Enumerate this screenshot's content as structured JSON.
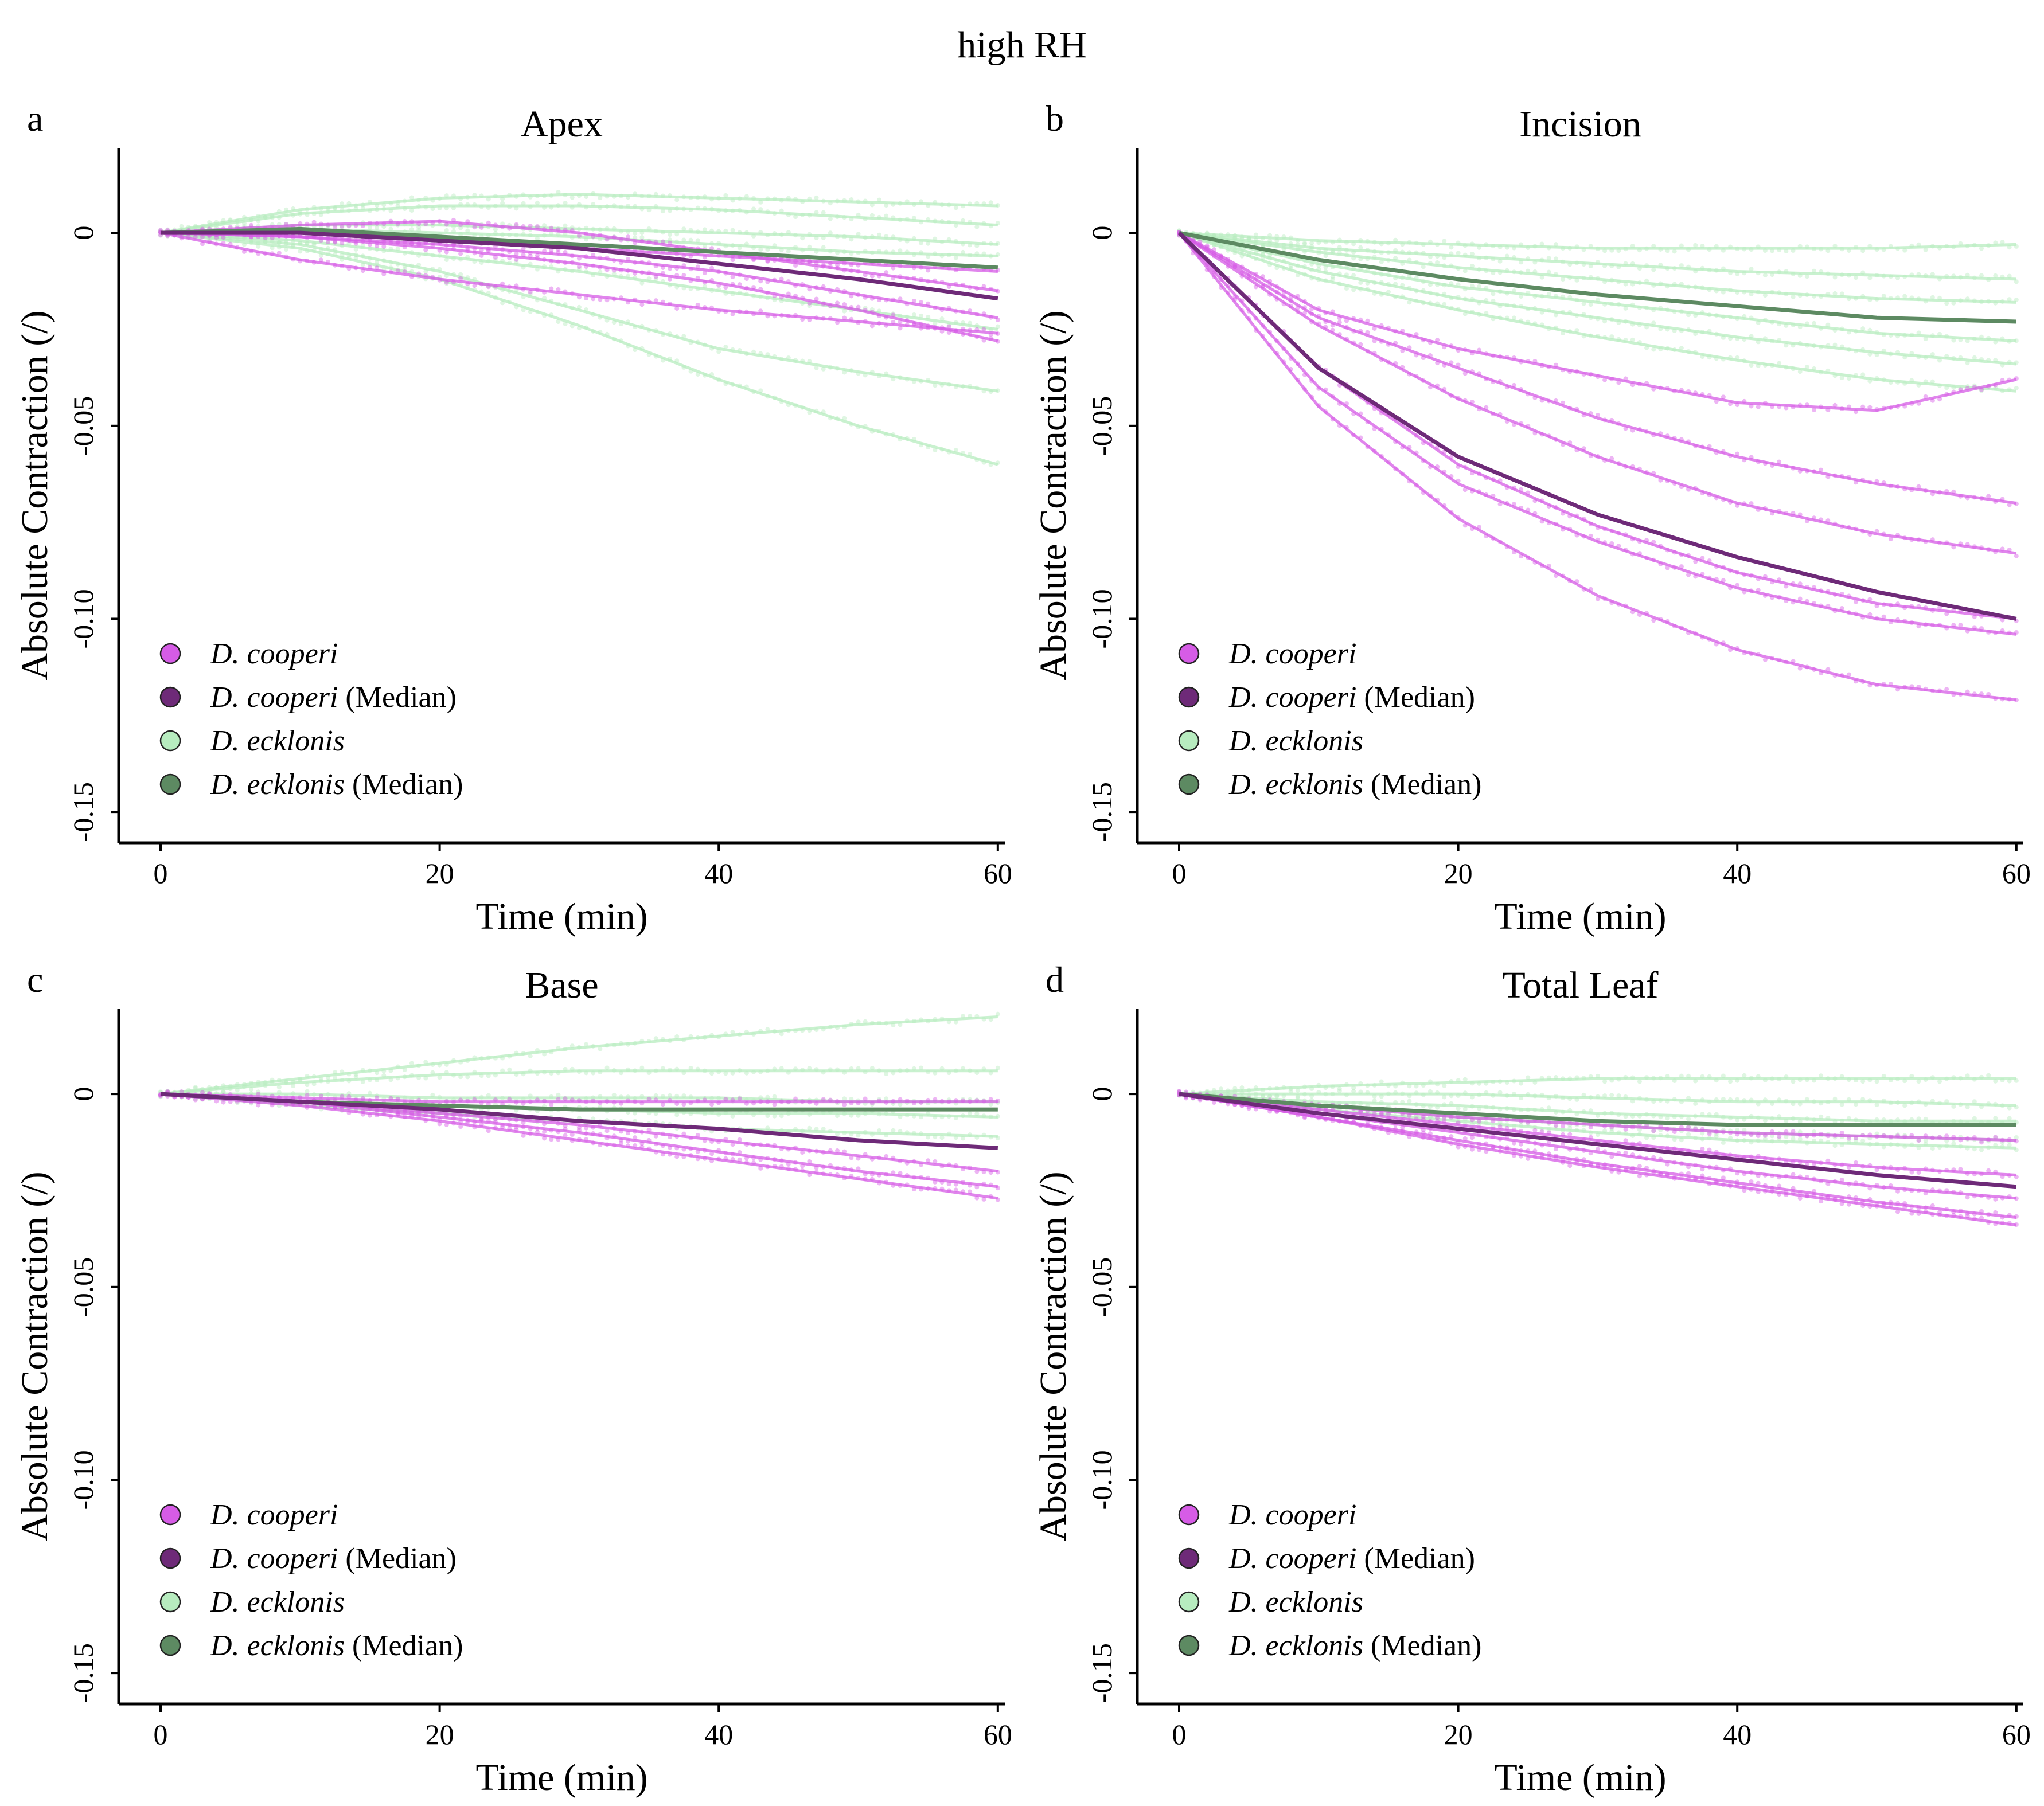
{
  "figure": {
    "title": "high RH",
    "colors": {
      "cooperi": "#d65ce6",
      "cooperi_median": "#6e2a78",
      "ecklonis": "#b7ecbf",
      "ecklonis_median": "#5d8a62"
    }
  },
  "chart_data": [
    {
      "type": "line",
      "panel": "a",
      "title": "Apex",
      "xlabel": "Time (min)",
      "ylabel": "Absolute Contraction (/)",
      "xlim": [
        -3,
        60.5
      ],
      "ylim": [
        -0.158,
        0.022
      ],
      "xticks": [
        0,
        20,
        40,
        60
      ],
      "yticks": [
        0,
        -0.05,
        -0.1,
        -0.15
      ],
      "ytick_labels": [
        "0",
        "-0.05",
        "-0.10",
        "-0.15"
      ],
      "legend": {
        "position": "bottom-left",
        "entries": [
          {
            "label": "D. cooperi",
            "suffix": "",
            "color": "#d65ce6"
          },
          {
            "label": "D. cooperi",
            "suffix": " (Median)",
            "color": "#6e2a78"
          },
          {
            "label": "D. ecklonis",
            "suffix": "",
            "color": "#b7ecbf"
          },
          {
            "label": "D. ecklonis",
            "suffix": " (Median)",
            "color": "#5d8a62"
          }
        ]
      },
      "x": [
        0,
        10,
        20,
        30,
        40,
        50,
        60
      ],
      "series": [
        {
          "name": "D. cooperi",
          "group": "cooperi",
          "values": [
            0,
            0.002,
            0.003,
            0,
            -0.005,
            -0.01,
            -0.015
          ]
        },
        {
          "name": "D. cooperi",
          "group": "cooperi",
          "values": [
            0,
            -0.001,
            -0.003,
            -0.006,
            -0.01,
            -0.016,
            -0.022
          ]
        },
        {
          "name": "D. cooperi",
          "group": "cooperi",
          "values": [
            0,
            -0.007,
            -0.012,
            -0.016,
            -0.02,
            -0.023,
            -0.026
          ]
        },
        {
          "name": "D. cooperi",
          "group": "cooperi",
          "values": [
            0,
            -0.001,
            -0.004,
            -0.008,
            -0.013,
            -0.02,
            -0.028
          ]
        },
        {
          "name": "D. cooperi",
          "group": "cooperi",
          "values": [
            0,
            0,
            -0.002,
            -0.004,
            -0.006,
            -0.008,
            -0.01
          ]
        },
        {
          "name": "D. ecklonis",
          "group": "ecklonis",
          "values": [
            0,
            0.006,
            0.009,
            0.01,
            0.009,
            0.008,
            0.007
          ]
        },
        {
          "name": "D. ecklonis",
          "group": "ecklonis",
          "values": [
            0,
            0.005,
            0.007,
            0.007,
            0.006,
            0.004,
            0.002
          ]
        },
        {
          "name": "D. ecklonis",
          "group": "ecklonis",
          "values": [
            0,
            0.002,
            0.002,
            0.001,
            0,
            -0.001,
            -0.003
          ]
        },
        {
          "name": "D. ecklonis",
          "group": "ecklonis",
          "values": [
            0,
            0.001,
            0,
            -0.001,
            -0.003,
            -0.005,
            -0.006
          ]
        },
        {
          "name": "D. ecklonis",
          "group": "ecklonis",
          "values": [
            0,
            -0.002,
            -0.006,
            -0.01,
            -0.015,
            -0.02,
            -0.025
          ]
        },
        {
          "name": "D. ecklonis",
          "group": "ecklonis",
          "values": [
            0,
            -0.003,
            -0.01,
            -0.02,
            -0.03,
            -0.036,
            -0.041
          ]
        },
        {
          "name": "D. ecklonis",
          "group": "ecklonis",
          "values": [
            0,
            -0.004,
            -0.012,
            -0.024,
            -0.038,
            -0.05,
            -0.06
          ]
        },
        {
          "name": "D. cooperi (Median)",
          "group": "cooperi_median",
          "values": [
            0,
            0,
            -0.002,
            -0.004,
            -0.008,
            -0.012,
            -0.017
          ]
        },
        {
          "name": "D. ecklonis (Median)",
          "group": "ecklonis_median",
          "values": [
            0,
            0.001,
            -0.001,
            -0.003,
            -0.005,
            -0.007,
            -0.009
          ]
        }
      ]
    },
    {
      "type": "line",
      "panel": "b",
      "title": "Incision",
      "xlabel": "Time (min)",
      "ylabel": "Absolute Contraction (/)",
      "xlim": [
        -3,
        60.5
      ],
      "ylim": [
        -0.158,
        0.022
      ],
      "xticks": [
        0,
        20,
        40,
        60
      ],
      "yticks": [
        0,
        -0.05,
        -0.1,
        -0.15
      ],
      "ytick_labels": [
        "0",
        "-0.05",
        "-0.10",
        "-0.15"
      ],
      "legend": {
        "position": "bottom-left",
        "entries": [
          {
            "label": "D. cooperi",
            "suffix": "",
            "color": "#d65ce6"
          },
          {
            "label": "D. cooperi",
            "suffix": " (Median)",
            "color": "#6e2a78"
          },
          {
            "label": "D. ecklonis",
            "suffix": "",
            "color": "#b7ecbf"
          },
          {
            "label": "D. ecklonis",
            "suffix": " (Median)",
            "color": "#5d8a62"
          }
        ]
      },
      "x": [
        0,
        10,
        20,
        30,
        40,
        50,
        60
      ],
      "series": [
        {
          "name": "D. cooperi",
          "group": "cooperi",
          "values": [
            0,
            -0.02,
            -0.03,
            -0.037,
            -0.044,
            -0.046,
            -0.038
          ]
        },
        {
          "name": "D. cooperi",
          "group": "cooperi",
          "values": [
            0,
            -0.022,
            -0.035,
            -0.048,
            -0.058,
            -0.065,
            -0.07
          ]
        },
        {
          "name": "D. cooperi",
          "group": "cooperi",
          "values": [
            0,
            -0.024,
            -0.043,
            -0.058,
            -0.07,
            -0.078,
            -0.083
          ]
        },
        {
          "name": "D. cooperi",
          "group": "cooperi",
          "values": [
            0,
            -0.035,
            -0.06,
            -0.076,
            -0.088,
            -0.096,
            -0.1
          ]
        },
        {
          "name": "D. cooperi",
          "group": "cooperi",
          "values": [
            0,
            -0.04,
            -0.065,
            -0.08,
            -0.092,
            -0.1,
            -0.104
          ]
        },
        {
          "name": "D. cooperi",
          "group": "cooperi",
          "values": [
            0,
            -0.045,
            -0.074,
            -0.094,
            -0.108,
            -0.117,
            -0.121
          ]
        },
        {
          "name": "D. ecklonis",
          "group": "ecklonis",
          "values": [
            0,
            -0.002,
            -0.003,
            -0.004,
            -0.004,
            -0.004,
            -0.003
          ]
        },
        {
          "name": "D. ecklonis",
          "group": "ecklonis",
          "values": [
            0,
            -0.004,
            -0.006,
            -0.008,
            -0.01,
            -0.011,
            -0.012
          ]
        },
        {
          "name": "D. ecklonis",
          "group": "ecklonis",
          "values": [
            0,
            -0.005,
            -0.009,
            -0.012,
            -0.015,
            -0.017,
            -0.018
          ]
        },
        {
          "name": "D. ecklonis",
          "group": "ecklonis",
          "values": [
            0,
            -0.008,
            -0.014,
            -0.018,
            -0.022,
            -0.026,
            -0.028
          ]
        },
        {
          "name": "D. ecklonis",
          "group": "ecklonis",
          "values": [
            0,
            -0.01,
            -0.017,
            -0.022,
            -0.027,
            -0.031,
            -0.034
          ]
        },
        {
          "name": "D. ecklonis",
          "group": "ecklonis",
          "values": [
            0,
            -0.012,
            -0.02,
            -0.027,
            -0.033,
            -0.038,
            -0.041
          ]
        },
        {
          "name": "D. cooperi (Median)",
          "group": "cooperi_median",
          "values": [
            0,
            -0.035,
            -0.058,
            -0.073,
            -0.084,
            -0.093,
            -0.1
          ]
        },
        {
          "name": "D. ecklonis (Median)",
          "group": "ecklonis_median",
          "values": [
            0,
            -0.007,
            -0.012,
            -0.016,
            -0.019,
            -0.022,
            -0.023
          ]
        }
      ]
    },
    {
      "type": "line",
      "panel": "c",
      "title": "Base",
      "xlabel": "Time (min)",
      "ylabel": "Absolute Contraction (/)",
      "xlim": [
        -3,
        60.5
      ],
      "ylim": [
        -0.158,
        0.022
      ],
      "xticks": [
        0,
        20,
        40,
        60
      ],
      "yticks": [
        0,
        -0.05,
        -0.1,
        -0.15
      ],
      "ytick_labels": [
        "0",
        "-0.05",
        "-0.10",
        "-0.15"
      ],
      "legend": {
        "position": "bottom-left",
        "entries": [
          {
            "label": "D. cooperi",
            "suffix": "",
            "color": "#d65ce6"
          },
          {
            "label": "D. cooperi",
            "suffix": " (Median)",
            "color": "#6e2a78"
          },
          {
            "label": "D. ecklonis",
            "suffix": "",
            "color": "#b7ecbf"
          },
          {
            "label": "D. ecklonis",
            "suffix": " (Median)",
            "color": "#5d8a62"
          }
        ]
      },
      "x": [
        0,
        10,
        20,
        30,
        40,
        50,
        60
      ],
      "series": [
        {
          "name": "D. cooperi",
          "group": "cooperi",
          "values": [
            0,
            -0.001,
            -0.002,
            -0.002,
            -0.002,
            -0.002,
            -0.002
          ]
        },
        {
          "name": "D. cooperi",
          "group": "cooperi",
          "values": [
            0,
            -0.002,
            -0.005,
            -0.008,
            -0.012,
            -0.016,
            -0.02
          ]
        },
        {
          "name": "D. cooperi",
          "group": "cooperi",
          "values": [
            0,
            -0.002,
            -0.006,
            -0.01,
            -0.015,
            -0.02,
            -0.024
          ]
        },
        {
          "name": "D. cooperi",
          "group": "cooperi",
          "values": [
            0,
            -0.003,
            -0.007,
            -0.012,
            -0.017,
            -0.022,
            -0.027
          ]
        },
        {
          "name": "D. ecklonis",
          "group": "ecklonis",
          "values": [
            0,
            0.004,
            0.008,
            0.012,
            0.015,
            0.018,
            0.02
          ]
        },
        {
          "name": "D. ecklonis",
          "group": "ecklonis",
          "values": [
            0,
            0.003,
            0.005,
            0.006,
            0.006,
            0.006,
            0.006
          ]
        },
        {
          "name": "D. ecklonis",
          "group": "ecklonis",
          "values": [
            0,
            0,
            -0.001,
            -0.001,
            -0.001,
            -0.002,
            -0.002
          ]
        },
        {
          "name": "D. ecklonis",
          "group": "ecklonis",
          "values": [
            0,
            -0.002,
            -0.003,
            -0.004,
            -0.005,
            -0.005,
            -0.006
          ]
        },
        {
          "name": "D. ecklonis",
          "group": "ecklonis",
          "values": [
            0,
            -0.003,
            -0.005,
            -0.007,
            -0.009,
            -0.01,
            -0.011
          ]
        },
        {
          "name": "D. cooperi (Median)",
          "group": "cooperi_median",
          "values": [
            0,
            -0.002,
            -0.004,
            -0.007,
            -0.009,
            -0.012,
            -0.014
          ]
        },
        {
          "name": "D. ecklonis (Median)",
          "group": "ecklonis_median",
          "values": [
            0,
            -0.002,
            -0.003,
            -0.004,
            -0.004,
            -0.004,
            -0.004
          ]
        }
      ]
    },
    {
      "type": "line",
      "panel": "d",
      "title": "Total Leaf",
      "xlabel": "Time (min)",
      "ylabel": "Absolute Contraction (/)",
      "xlim": [
        -3,
        60.5
      ],
      "ylim": [
        -0.158,
        0.022
      ],
      "xticks": [
        0,
        20,
        40,
        60
      ],
      "yticks": [
        0,
        -0.05,
        -0.1,
        -0.15
      ],
      "ytick_labels": [
        "0",
        "-0.05",
        "-0.10",
        "-0.15"
      ],
      "legend": {
        "position": "bottom-left",
        "entries": [
          {
            "label": "D. cooperi",
            "suffix": "",
            "color": "#d65ce6"
          },
          {
            "label": "D. cooperi",
            "suffix": " (Median)",
            "color": "#6e2a78"
          },
          {
            "label": "D. ecklonis",
            "suffix": "",
            "color": "#b7ecbf"
          },
          {
            "label": "D. ecklonis",
            "suffix": " (Median)",
            "color": "#5d8a62"
          }
        ]
      },
      "x": [
        0,
        10,
        20,
        30,
        40,
        50,
        60
      ],
      "series": [
        {
          "name": "D. cooperi",
          "group": "cooperi",
          "values": [
            0,
            -0.003,
            -0.006,
            -0.008,
            -0.01,
            -0.011,
            -0.012
          ]
        },
        {
          "name": "D. cooperi",
          "group": "cooperi",
          "values": [
            0,
            -0.004,
            -0.008,
            -0.012,
            -0.016,
            -0.019,
            -0.021
          ]
        },
        {
          "name": "D. cooperi",
          "group": "cooperi",
          "values": [
            0,
            -0.005,
            -0.01,
            -0.015,
            -0.02,
            -0.024,
            -0.027
          ]
        },
        {
          "name": "D. cooperi",
          "group": "cooperi",
          "values": [
            0,
            -0.006,
            -0.012,
            -0.018,
            -0.023,
            -0.028,
            -0.032
          ]
        },
        {
          "name": "D. cooperi",
          "group": "cooperi",
          "values": [
            0,
            -0.006,
            -0.013,
            -0.019,
            -0.024,
            -0.029,
            -0.034
          ]
        },
        {
          "name": "D. ecklonis",
          "group": "ecklonis",
          "values": [
            0,
            0.002,
            0.003,
            0.004,
            0.004,
            0.004,
            0.004
          ]
        },
        {
          "name": "D. ecklonis",
          "group": "ecklonis",
          "values": [
            0,
            0,
            0,
            -0.001,
            -0.002,
            -0.002,
            -0.003
          ]
        },
        {
          "name": "D. ecklonis",
          "group": "ecklonis",
          "values": [
            0,
            -0.002,
            -0.003,
            -0.005,
            -0.006,
            -0.007,
            -0.007
          ]
        },
        {
          "name": "D. ecklonis",
          "group": "ecklonis",
          "values": [
            0,
            -0.003,
            -0.006,
            -0.008,
            -0.01,
            -0.011,
            -0.012
          ]
        },
        {
          "name": "D. ecklonis",
          "group": "ecklonis",
          "values": [
            0,
            -0.004,
            -0.007,
            -0.01,
            -0.012,
            -0.013,
            -0.014
          ]
        },
        {
          "name": "D. cooperi (Median)",
          "group": "cooperi_median",
          "values": [
            0,
            -0.005,
            -0.009,
            -0.013,
            -0.017,
            -0.021,
            -0.024
          ]
        },
        {
          "name": "D. ecklonis (Median)",
          "group": "ecklonis_median",
          "values": [
            0,
            -0.003,
            -0.005,
            -0.007,
            -0.008,
            -0.008,
            -0.008
          ]
        }
      ]
    }
  ]
}
